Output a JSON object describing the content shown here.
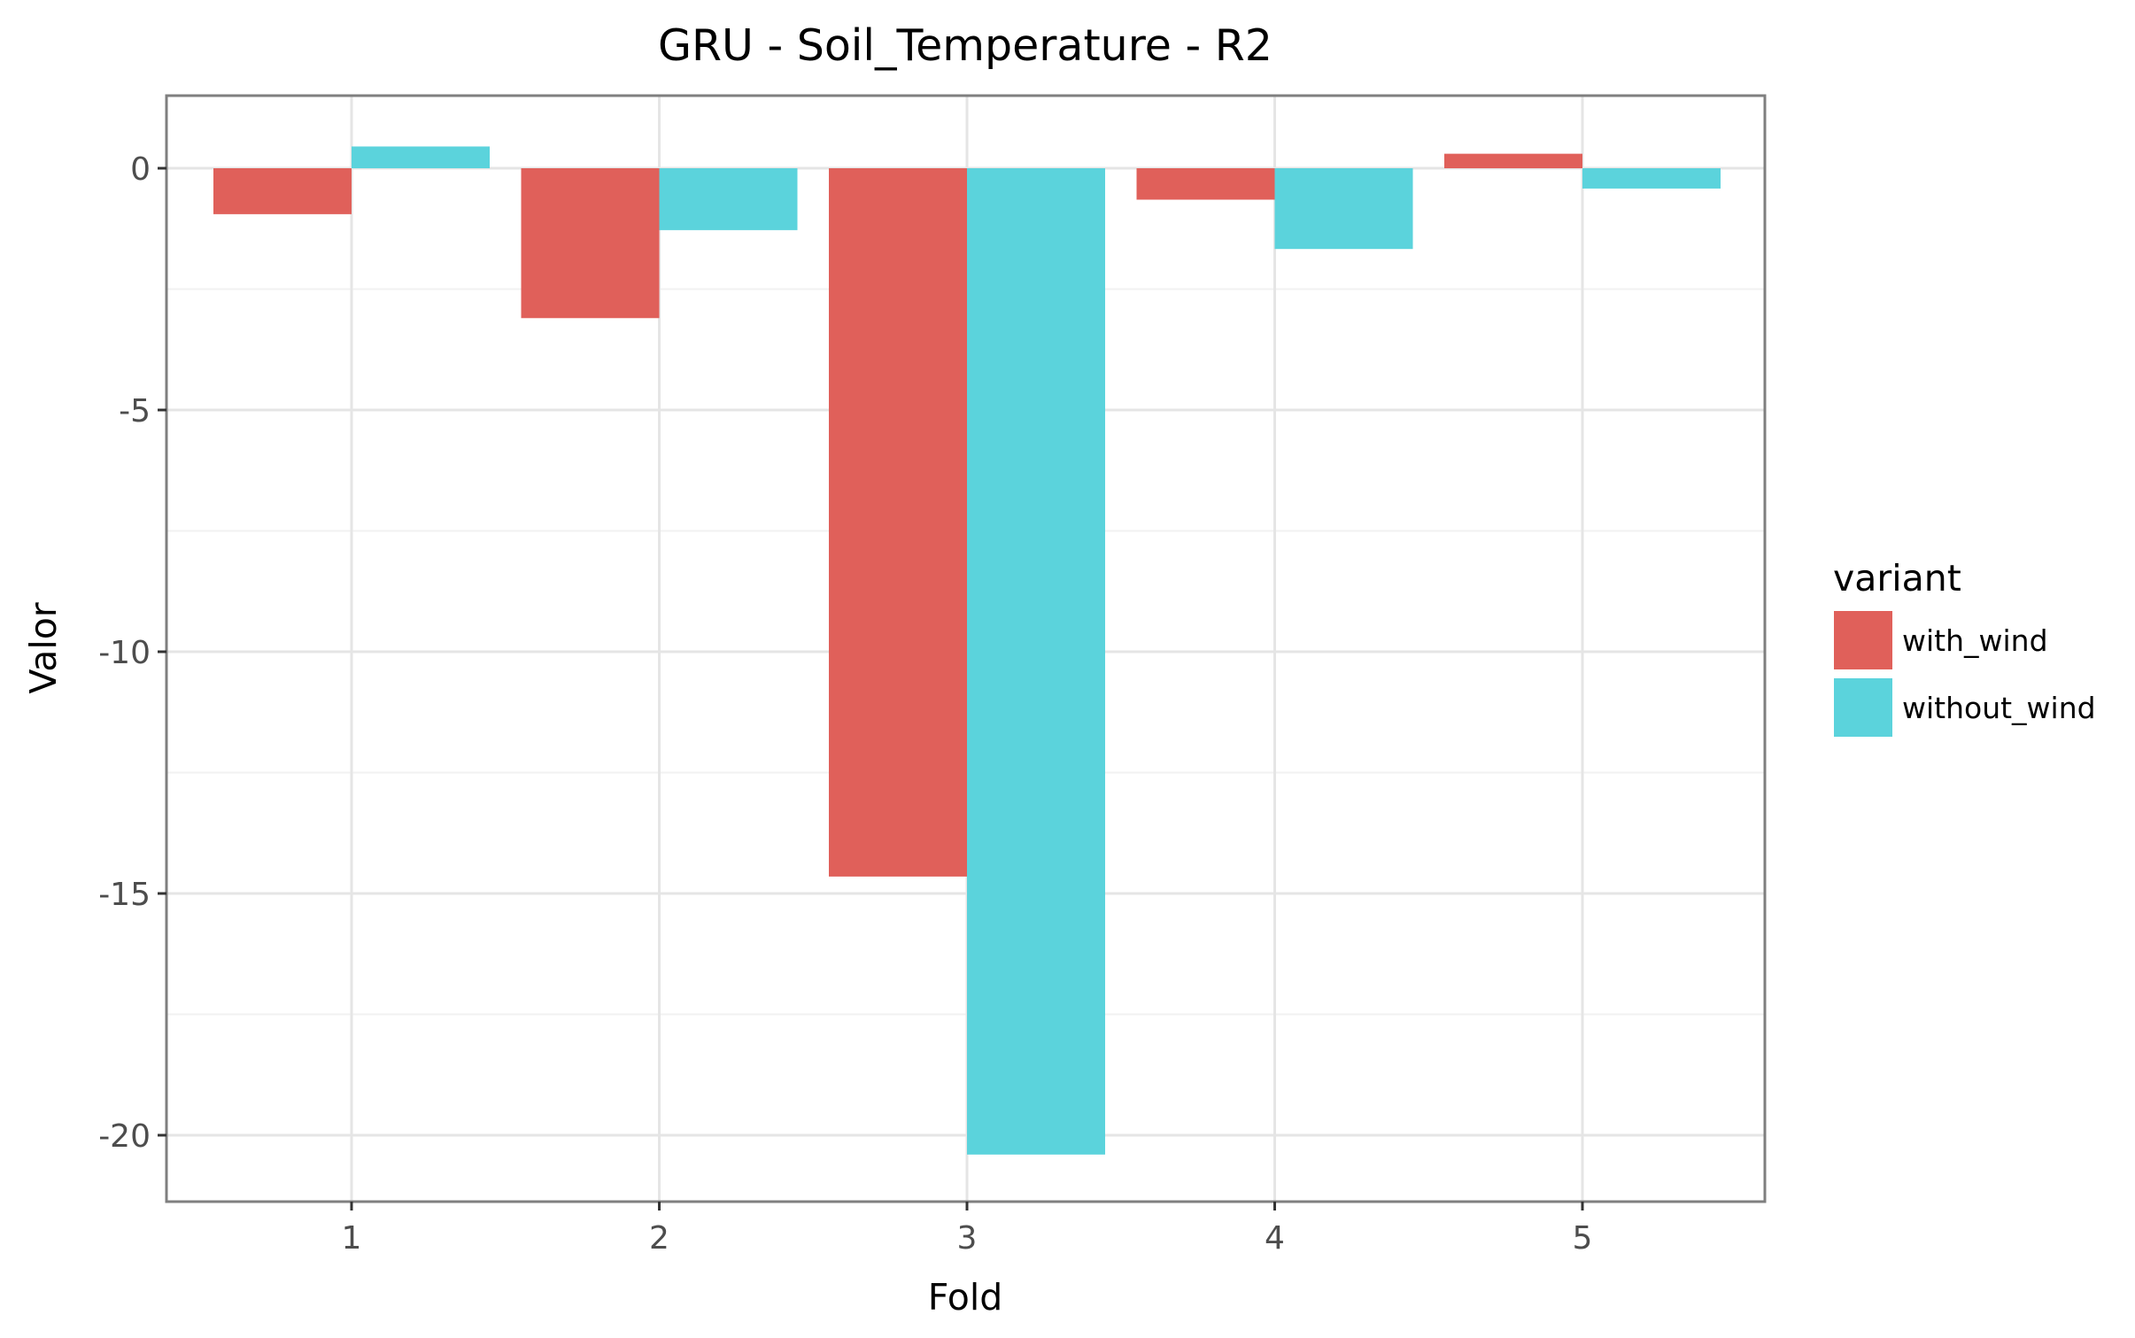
{
  "chart_data": {
    "type": "bar",
    "title": "GRU - Soil_Temperature - R2",
    "xlabel": "Fold",
    "ylabel": "Valor",
    "categories": [
      "1",
      "2",
      "3",
      "4",
      "5"
    ],
    "series": [
      {
        "name": "with_wind",
        "color": "#e0605a",
        "values": [
          -0.95,
          -3.1,
          -14.65,
          -0.65,
          0.3
        ]
      },
      {
        "name": "without_wind",
        "color": "#5bd3dc",
        "values": [
          0.45,
          -1.28,
          -20.4,
          -1.67,
          -0.42
        ]
      }
    ],
    "yticks": [
      0,
      -5,
      -10,
      -15,
      -20
    ],
    "ytick_labels": [
      "0",
      "-5",
      "-10",
      "-15",
      "-20"
    ],
    "ylim": [
      -21.4,
      1.5
    ],
    "grid": true,
    "legend": {
      "title": "variant",
      "position": "right"
    }
  }
}
